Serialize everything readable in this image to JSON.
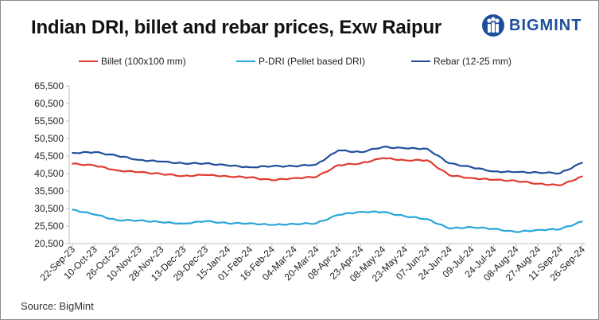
{
  "title": "Indian DRI, billet and rebar prices, Exw Raipur",
  "brand": {
    "name": "BIGMINT",
    "color": "#1f4e9c",
    "icon": "people-logo-icon"
  },
  "source": "Source: BigMint",
  "chart_data": {
    "type": "line",
    "title": "Indian DRI, billet and rebar prices, Exw Raipur",
    "xlabel": "",
    "ylabel": "",
    "ylim": [
      20500,
      65500
    ],
    "yticks": [
      20500,
      25500,
      30500,
      35500,
      40500,
      45500,
      50500,
      55500,
      60500,
      65500
    ],
    "ytick_labels": [
      "20,500",
      "25,500",
      "30,500",
      "35,500",
      "40,500",
      "45,500",
      "50,500",
      "55,500",
      "60,500",
      "65,500"
    ],
    "categories": [
      "22-Sep-23",
      "10-Oct-23",
      "26-Oct-23",
      "10-Nov-23",
      "28-Nov-23",
      "13-Dec-23",
      "29-Dec-23",
      "15-Jan-24",
      "01-Feb-24",
      "16-Feb-24",
      "04-Mar-24",
      "20-Mar-24",
      "08-Apr-24",
      "23-Apr-24",
      "08-May-24",
      "23-May-24",
      "07-Jun-24",
      "24-Jun-24",
      "09-Jul-24",
      "24-Jul-24",
      "08-Aug-24",
      "27-Aug-24",
      "11-Sep-24",
      "26-Sep-24"
    ],
    "grid": false,
    "legend_position": "top",
    "series": [
      {
        "name": "Billet (100x100 mm)",
        "color": "#e03c31",
        "values": [
          43300,
          42800,
          41400,
          40900,
          40400,
          39800,
          40100,
          39700,
          39400,
          38600,
          39200,
          39500,
          42900,
          43400,
          44900,
          44300,
          44300,
          40000,
          39200,
          38700,
          38400,
          37600,
          37100,
          39700
        ]
      },
      {
        "name": "P-DRI (Pellet based DRI)",
        "color": "#29a7d8",
        "values": [
          30200,
          28800,
          27200,
          27100,
          26600,
          26200,
          26900,
          26300,
          26300,
          25800,
          26100,
          26300,
          28700,
          29600,
          29500,
          28300,
          27500,
          24800,
          25200,
          24700,
          23800,
          24400,
          24600,
          26800
        ]
      },
      {
        "name": "Rebar (12-25 mm)",
        "color": "#1f4e9c",
        "values": [
          46400,
          46600,
          45600,
          44400,
          43900,
          43400,
          43400,
          42800,
          42300,
          42600,
          42600,
          43100,
          47100,
          46600,
          48100,
          47700,
          47600,
          43400,
          42300,
          41100,
          40900,
          40800,
          40600,
          43600
        ]
      }
    ]
  }
}
